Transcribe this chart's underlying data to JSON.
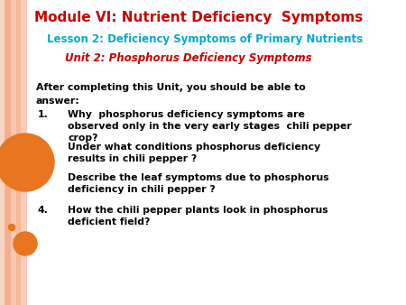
{
  "title": "Module VI: Nutrient Deficiency  Symptoms",
  "title_color": "#CC0000",
  "lesson": "Lesson 2: Deficiency Symptoms of Primary Nutrients",
  "lesson_color": "#00AACC",
  "unit": "Unit 2: Phosphorus Deficiency Symptoms",
  "unit_color": "#CC0000",
  "intro_line1": "After completing this Unit, you should be able to",
  "intro_line2": "answer:",
  "items": [
    "Why  phosphorus deficiency symptoms are\nobserved only in the very early stages  chili pepper\ncrop?",
    "Under what conditions phosphorus deficiency\nresults in chili pepper ?",
    "Describe the leaf symptoms due to phosphorus\ndeficiency in chili pepper ?",
    "How the chili pepper plants look in phosphorus\ndeficient field?"
  ],
  "bg_color": "#FFFFFF",
  "circle_big_color": "#E87520",
  "circle_small_color": "#E87520",
  "circle_tiny_color": "#E87520",
  "stripe_colors": [
    "#F7D5C5",
    "#F2B090",
    "#F7C8B0",
    "#F2B898",
    "#F7CDB8"
  ],
  "stripe_widths": [
    5,
    7,
    6,
    5,
    7
  ]
}
